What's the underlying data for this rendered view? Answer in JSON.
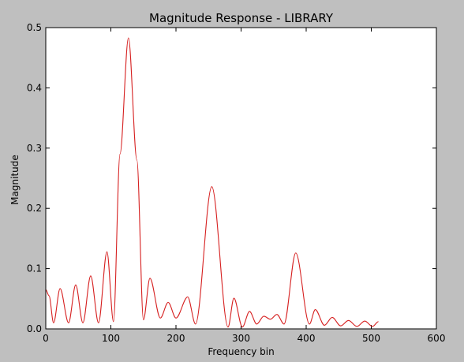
{
  "chart_data": {
    "type": "line",
    "title": "Magnitude Response - LIBRARY",
    "xlabel": "Frequency bin",
    "ylabel": "Magnitude",
    "xlim": [
      0,
      600
    ],
    "ylim": [
      0,
      0.5
    ],
    "xticks": [
      0,
      100,
      200,
      300,
      400,
      500,
      600
    ],
    "xtick_labels": [
      "0",
      "100",
      "200",
      "300",
      "400",
      "500",
      "600"
    ],
    "yticks": [
      0.0,
      0.1,
      0.2,
      0.3,
      0.4,
      0.5
    ],
    "ytick_labels": [
      "0.0",
      "0.1",
      "0.2",
      "0.3",
      "0.4",
      "0.5"
    ],
    "grid": false,
    "series": [
      {
        "color": "#d62020",
        "x": [
          0,
          5,
          12,
          22,
          35,
          46,
          57,
          69,
          81,
          94,
          104,
          114,
          127,
          140,
          150,
          160,
          176,
          188,
          200,
          218,
          230,
          255,
          280,
          289,
          302,
          313,
          324,
          335,
          345,
          355,
          366,
          384,
          405,
          414,
          428,
          440,
          453,
          465,
          478,
          490,
          502,
          511
        ],
        "y": [
          0.065,
          0.055,
          0.01,
          0.067,
          0.01,
          0.073,
          0.01,
          0.088,
          0.01,
          0.128,
          0.012,
          0.29,
          0.483,
          0.28,
          0.015,
          0.084,
          0.018,
          0.044,
          0.018,
          0.053,
          0.008,
          0.236,
          0.003,
          0.051,
          0.003,
          0.029,
          0.008,
          0.021,
          0.016,
          0.024,
          0.008,
          0.126,
          0.008,
          0.032,
          0.006,
          0.019,
          0.005,
          0.014,
          0.004,
          0.013,
          0.004,
          0.012
        ]
      }
    ]
  }
}
